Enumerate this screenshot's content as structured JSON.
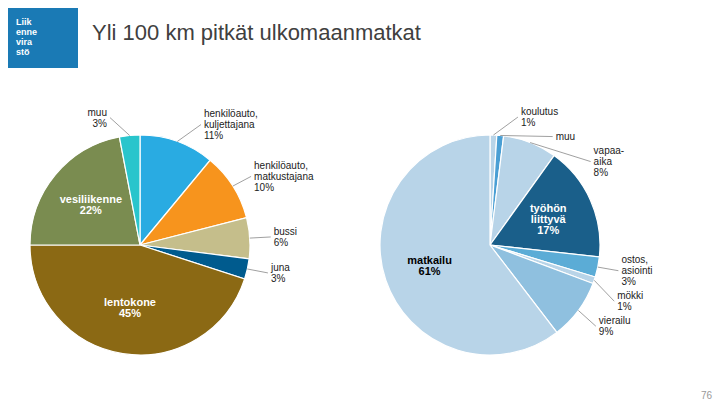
{
  "title": "Yli 100 km pitkät ulkomaanmatkat",
  "annotations": [
    {
      "text": "Liik\nenne\nvira\nstö",
      "color": "#1a7ab5"
    },
    {
      "text": "76"
    }
  ],
  "chart_data": [
    {
      "type": "pie",
      "categories": [
        "henkilöauto,\nkuljettajana",
        "henkilöauto,\nmatkustajana",
        "bussi",
        "juna",
        "lentokone",
        "vesiliikenne",
        "muu"
      ],
      "values": [
        11,
        10,
        6,
        3,
        45,
        22,
        3
      ],
      "value_labels": [
        "11%",
        "10%",
        "6%",
        "3%",
        "45%",
        "22%",
        "3%"
      ],
      "colors": [
        "#29abe2",
        "#f7941d",
        "#c5be8b",
        "#005b8e",
        "#8b6914",
        "#7a8c50",
        "#29c5cc"
      ],
      "data_labels": true
    },
    {
      "type": "pie",
      "categories": [
        "koulutus",
        "muu",
        "vapaa-\naika",
        "työhön\nliittyvä",
        "ostos,\nasiointi",
        "mökki",
        "vierailu",
        "matkailu"
      ],
      "values": [
        1,
        1,
        8,
        17,
        3,
        1,
        9,
        61
      ],
      "value_labels": [
        "1%",
        null,
        "8%",
        "17%",
        "3%",
        "1%",
        "9%",
        "61%"
      ],
      "colors": [
        "#b8d4e8",
        "#4a9fd4",
        "#b8d4e8",
        "#1a5f8a",
        "#5bacd6",
        "#b8d4e8",
        "#8fc0df",
        "#b8d4e8"
      ],
      "data_labels": true
    }
  ]
}
